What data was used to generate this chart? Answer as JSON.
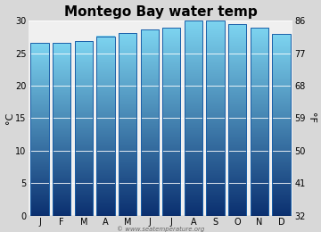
{
  "title": "Montego Bay water temp",
  "months": [
    "J",
    "F",
    "M",
    "A",
    "M",
    "J",
    "J",
    "A",
    "S",
    "O",
    "N",
    "D"
  ],
  "temps_c": [
    26.6,
    26.6,
    26.9,
    27.6,
    28.1,
    28.6,
    28.9,
    30.0,
    30.0,
    29.5,
    28.9,
    28.0
  ],
  "ylim_c": [
    0,
    30
  ],
  "yticks_c": [
    0,
    5,
    10,
    15,
    20,
    25,
    30
  ],
  "yticks_f": [
    32,
    41,
    50,
    59,
    68,
    77,
    86
  ],
  "ylabel_left": "°C",
  "ylabel_right": "°F",
  "bar_color_top": "#7dd4f0",
  "bar_color_bottom": "#0b3070",
  "bar_border_color": "#1a5fa8",
  "background_color": "#d8d8d8",
  "plot_bg_color": "#f0f0f0",
  "watermark": "© www.seatemperature.org",
  "title_fontsize": 11,
  "tick_fontsize": 7,
  "label_fontsize": 8,
  "bar_width": 0.82
}
